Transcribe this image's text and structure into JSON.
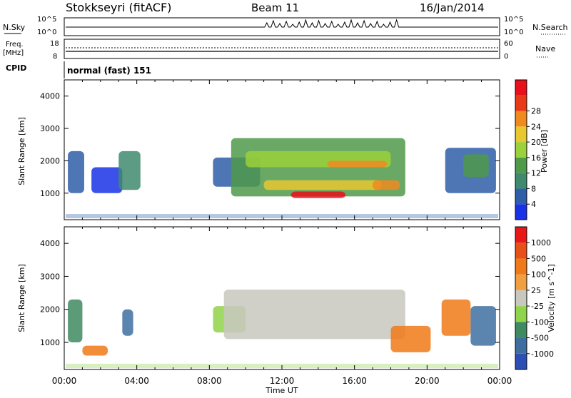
{
  "header": {
    "station": "Stokkseyri (fitACF)",
    "beam": "Beam 11",
    "date": "16/Jan/2014"
  },
  "status_panels": {
    "nsky_label": "N.Sky",
    "nsky_ticks": [
      "10^5",
      "10^0"
    ],
    "nsearch_label": "N.Search",
    "nsearch_ticks": [
      "10^5",
      "10^0"
    ],
    "freq_label": "Freq.",
    "freq_unit": "[MHz]",
    "freq_ticks": [
      "18",
      "8"
    ],
    "nave_label": "Nave",
    "nave_ticks": [
      "60",
      "0"
    ],
    "cpid_label": "CPID",
    "cpid_text": "normal (fast) 151"
  },
  "x_axis": {
    "label": "Time UT",
    "ticks": [
      "00:00",
      "04:00",
      "08:00",
      "12:00",
      "16:00",
      "20:00",
      "00:00"
    ]
  },
  "chart_data": [
    {
      "type": "heatmap",
      "name": "power",
      "ylabel": "Slant Range [km]",
      "yticks": [
        "1000",
        "2000",
        "3000",
        "4000"
      ],
      "ylim": [
        180,
        4500
      ],
      "xlim": [
        0,
        24
      ],
      "colorbar_label": "Power [dB]",
      "colorbar_ticks": [
        "4",
        "8",
        "12",
        "16",
        "20",
        "24",
        "28"
      ],
      "colors": [
        "#1a32e6",
        "#2f5ea8",
        "#3f8a6e",
        "#4f9a4a",
        "#9bd13a",
        "#e8c830",
        "#f08a1e",
        "#e83a18",
        "#e8101a"
      ],
      "regions": [
        {
          "t0": 0.2,
          "t1": 1.1,
          "r0": 1000,
          "r1": 2300,
          "level": 1
        },
        {
          "t0": 1.5,
          "t1": 3.2,
          "r0": 1000,
          "r1": 1800,
          "level": 0
        },
        {
          "t0": 3.0,
          "t1": 4.2,
          "r0": 1100,
          "r1": 2300,
          "level": 2
        },
        {
          "t0": 8.2,
          "t1": 10.8,
          "r0": 1200,
          "r1": 2100,
          "level": 1
        },
        {
          "t0": 9.2,
          "t1": 18.8,
          "r0": 900,
          "r1": 2700,
          "level": 3
        },
        {
          "t0": 10.0,
          "t1": 18.0,
          "r0": 1800,
          "r1": 2300,
          "level": 4
        },
        {
          "t0": 11.0,
          "t1": 17.5,
          "r0": 1100,
          "r1": 1400,
          "level": 5
        },
        {
          "t0": 12.5,
          "t1": 15.5,
          "r0": 850,
          "r1": 1050,
          "level": 8
        },
        {
          "t0": 14.5,
          "t1": 17.8,
          "r0": 1800,
          "r1": 2000,
          "level": 6
        },
        {
          "t0": 17.0,
          "t1": 18.5,
          "r0": 1100,
          "r1": 1400,
          "level": 6
        },
        {
          "t0": 21.0,
          "t1": 23.8,
          "r0": 1000,
          "r1": 2400,
          "level": 1
        },
        {
          "t0": 22.0,
          "t1": 23.4,
          "r0": 1500,
          "r1": 2200,
          "level": 3
        }
      ]
    },
    {
      "type": "heatmap",
      "name": "velocity",
      "ylabel": "Slant Range [km]",
      "yticks": [
        "1000",
        "2000",
        "3000",
        "4000"
      ],
      "ylim": [
        180,
        4500
      ],
      "xlim": [
        0,
        24
      ],
      "colorbar_label": "Velocity [m s^-1]",
      "colorbar_ticks": [
        "1000",
        "500",
        "100",
        "25",
        "-25",
        "-100",
        "-500",
        "-1000"
      ],
      "colors": [
        "#2d4fb4",
        "#3e6ea0",
        "#3f8a60",
        "#8fd44a",
        "#c8c8c0",
        "#f0a040",
        "#f07a18",
        "#e8501a",
        "#e81818"
      ],
      "regions": [
        {
          "t0": 0.2,
          "t1": 1.0,
          "r0": 1000,
          "r1": 2300,
          "level": 2
        },
        {
          "t0": 1.0,
          "t1": 2.4,
          "r0": 600,
          "r1": 900,
          "level": 6
        },
        {
          "t0": 3.2,
          "t1": 3.8,
          "r0": 1200,
          "r1": 2000,
          "level": 1
        },
        {
          "t0": 8.2,
          "t1": 10.0,
          "r0": 1300,
          "r1": 2100,
          "level": 3
        },
        {
          "t0": 8.8,
          "t1": 18.8,
          "r0": 1100,
          "r1": 2600,
          "level": 4
        },
        {
          "t0": 18.0,
          "t1": 20.2,
          "r0": 700,
          "r1": 1500,
          "level": 6
        },
        {
          "t0": 20.8,
          "t1": 22.4,
          "r0": 1200,
          "r1": 2300,
          "level": 6
        },
        {
          "t0": 22.4,
          "t1": 23.8,
          "r0": 900,
          "r1": 2100,
          "level": 1
        }
      ]
    }
  ]
}
